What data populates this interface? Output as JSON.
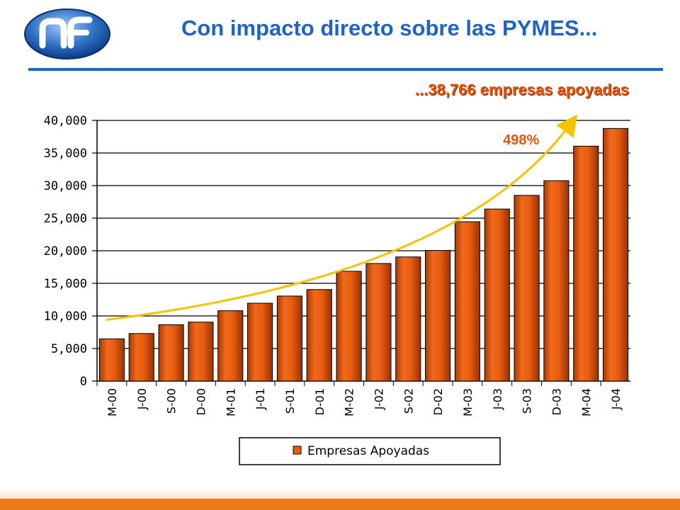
{
  "header": {
    "title": "Con impacto directo sobre las PYMES...",
    "subtitle": "...38,766 empresas apoyadas",
    "logo_icon": "nf-logo-icon"
  },
  "colors": {
    "title": "#1f63c9",
    "accent": "#e8540c",
    "bar": "#e85c10",
    "arrow": "#f5c400"
  },
  "chart_data": {
    "type": "bar",
    "categories": [
      "M-00",
      "J-00",
      "S-00",
      "D-00",
      "M-01",
      "J-01",
      "S-01",
      "D-01",
      "M-02",
      "J-02",
      "S-02",
      "D-02",
      "M-03",
      "J-03",
      "S-03",
      "D-03",
      "M-04",
      "J-04"
    ],
    "series": [
      {
        "name": "Empresas Apoyadas",
        "values": [
          6480,
          7300,
          8650,
          9050,
          10800,
          11950,
          13050,
          14050,
          16850,
          18050,
          19050,
          20050,
          24450,
          26400,
          28500,
          30750,
          36050,
          38766
        ]
      }
    ],
    "yticks": [
      "0",
      "5,000",
      "10,000",
      "15,000",
      "20,000",
      "25,000",
      "30,000",
      "35,000",
      "40,000"
    ],
    "ylim": [
      0,
      40000
    ],
    "grid": true,
    "legend_position": "bottom",
    "annotation": "498%"
  }
}
